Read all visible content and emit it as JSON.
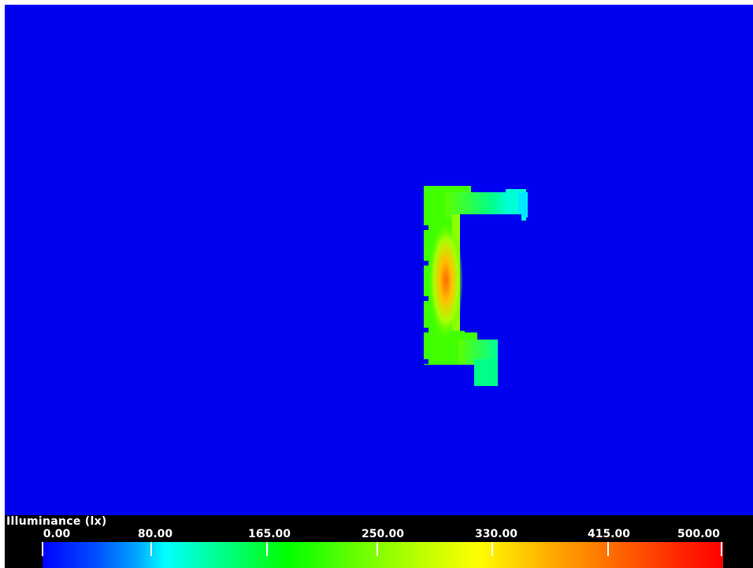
{
  "legend": {
    "title": "Illuminance (lx)",
    "ticks": [
      "0.00",
      "80.00",
      "165.00",
      "250.00",
      "330.00",
      "415.00",
      "500.00"
    ]
  },
  "chart_data": {
    "type": "heatmap",
    "scale_min": 0,
    "scale_max": 500,
    "colormap": [
      "#0000ff",
      "#00ffff",
      "#00ff00",
      "#ffff00",
      "#ff0000"
    ],
    "background_color": "#0000f0"
  }
}
